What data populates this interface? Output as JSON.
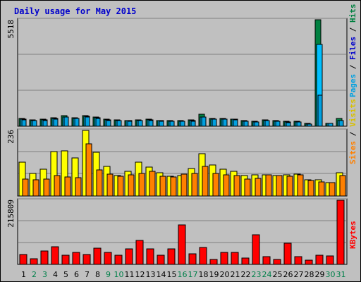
{
  "colors": {
    "title": "#0000cc",
    "background": "#c0c0c0",
    "panel": "#c0c0c0",
    "hits": "#008040",
    "files": "#00c0ff",
    "pages": "#00a0e0",
    "visits": "#ffff00",
    "sites": "#ff8000",
    "kbytes": "#ff0000",
    "weekend_label": "#00804a",
    "weekday_label": "#000000"
  },
  "chart_data": {
    "type": "bar",
    "title": "Daily usage for May 2015",
    "categories": [
      "1",
      "2",
      "3",
      "4",
      "5",
      "6",
      "7",
      "8",
      "9",
      "10",
      "11",
      "12",
      "13",
      "14",
      "15",
      "16",
      "17",
      "18",
      "19",
      "20",
      "21",
      "22",
      "23",
      "24",
      "25",
      "26",
      "27",
      "28",
      "29",
      "30",
      "31"
    ],
    "weekend_days": [
      "2",
      "3",
      "9",
      "10",
      "16",
      "17",
      "23",
      "24",
      "30",
      "31"
    ],
    "panels": [
      {
        "name": "hits_files_pages",
        "ymax": 5518,
        "ymax_label": "5518",
        "side_label": {
          "pages": "Pages",
          "sep1": " / ",
          "files": "Files",
          "sep2": " / ",
          "hits": "Hits"
        },
        "series": [
          {
            "name": "Hits",
            "values": [
              390,
              330,
              360,
              430,
              530,
              430,
              550,
              470,
              360,
              330,
              310,
              330,
              350,
              310,
              280,
              290,
              320,
              610,
              420,
              400,
              380,
              290,
              260,
              320,
              280,
              240,
              250,
              130,
              5518,
              160,
              420
            ]
          },
          {
            "name": "Files",
            "values": [
              350,
              300,
              330,
              390,
              490,
              400,
              510,
              440,
              320,
              300,
              280,
              300,
              320,
              280,
              250,
              260,
              280,
              480,
              380,
              360,
              350,
              260,
              220,
              290,
              250,
              210,
              220,
              110,
              4250,
              140,
              300
            ]
          },
          {
            "name": "Pages",
            "values": [
              340,
              290,
              310,
              380,
              470,
              390,
              480,
              420,
              300,
              290,
              270,
              290,
              300,
              270,
              240,
              250,
              270,
              460,
              370,
              350,
              340,
              250,
              210,
              280,
              240,
              200,
              210,
              100,
              1600,
              130,
              290
            ]
          }
        ]
      },
      {
        "name": "visits_sites",
        "ymax": 236,
        "ymax_label": "236",
        "side_label": {
          "sites": "Sites",
          "sep1": " / ",
          "visits": "Visits"
        },
        "series": [
          {
            "name": "Visits",
            "values": [
              122,
              80,
              97,
              160,
              162,
              138,
              236,
              158,
              106,
              73,
              88,
              122,
              104,
              84,
              70,
              73,
              100,
              152,
              112,
              97,
              89,
              73,
              77,
              77,
              73,
              77,
              78,
              58,
              58,
              48,
              83
            ]
          },
          {
            "name": "Sites",
            "values": [
              62,
              58,
              62,
              73,
              68,
              67,
              187,
              93,
              78,
              70,
              75,
              80,
              90,
              72,
              68,
              78,
              80,
              107,
              80,
              77,
              73,
              62,
              63,
              77,
              73,
              72,
              76,
              55,
              52,
              48,
              73
            ]
          }
        ]
      },
      {
        "name": "kbytes",
        "ymax": 215809,
        "ymax_label": "215809",
        "side_label": {
          "kbytes": "KBytes"
        },
        "series": [
          {
            "name": "KBytes",
            "values": [
              34000,
              20000,
              44000,
              60000,
              32000,
              40000,
              34000,
              54000,
              40000,
              30000,
              52000,
              81000,
              52000,
              31000,
              52000,
              133000,
              35000,
              57000,
              17000,
              40000,
              41000,
              22000,
              99000,
              25000,
              16000,
              70000,
              25000,
              14000,
              32000,
              28000,
              215809
            ]
          }
        ]
      }
    ]
  }
}
